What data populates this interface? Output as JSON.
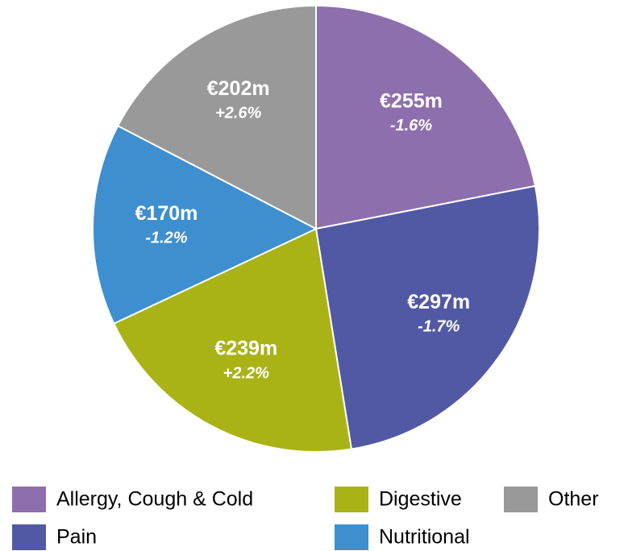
{
  "chart_data": {
    "type": "pie",
    "categories": [
      "Allergy, Cough & Cold",
      "Pain",
      "Digestive",
      "Nutritional",
      "Other"
    ],
    "values": [
      255,
      297,
      239,
      170,
      202
    ],
    "value_labels": [
      "€255m",
      "€297m",
      "€239m",
      "€170m",
      "€202m"
    ],
    "changes": [
      "-1.6%",
      "-1.7%",
      "+2.2%",
      "-1.2%",
      "+2.6%"
    ],
    "colors": [
      "#8e6fad",
      "#5159a4",
      "#a9b316",
      "#3d8fd0",
      "#999999"
    ],
    "legend": "bottom"
  }
}
